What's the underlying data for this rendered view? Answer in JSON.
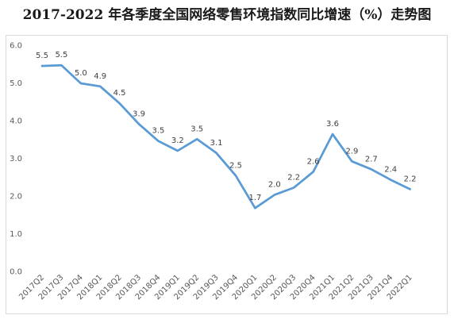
{
  "chart_data": {
    "type": "line",
    "title": "2017-2022 年各季度全国网络零售环境指数同比增速（%）走势图",
    "xlabel": "",
    "ylabel": "",
    "ylim": [
      0,
      6
    ],
    "yticks": [
      "0.0",
      "1.0",
      "2.0",
      "3.0",
      "4.0",
      "5.0",
      "6.0"
    ],
    "grid": false,
    "legend": "none",
    "line_color": "#5b9bd5",
    "categories": [
      "2017Q2",
      "2017Q3",
      "2017Q4",
      "2018Q1",
      "2018Q2",
      "2018Q3",
      "2018Q4",
      "2019Q1",
      "2019Q2",
      "2019Q3",
      "2019Q4",
      "2020Q1",
      "2020Q2",
      "2020Q3",
      "2020Q4",
      "2021Q1",
      "2021Q2",
      "2021Q3",
      "2021Q4",
      "2022Q1"
    ],
    "values": [
      5.45,
      5.47,
      4.99,
      4.91,
      4.46,
      3.91,
      3.46,
      3.2,
      3.51,
      3.14,
      2.54,
      1.68,
      2.03,
      2.22,
      2.64,
      3.64,
      2.92,
      2.71,
      2.43,
      2.18
    ],
    "data_labels": [
      "5.5",
      "5.5",
      "5.0",
      "4.9",
      "4.5",
      "3.9",
      "3.5",
      "3.2",
      "3.5",
      "3.1",
      "2.5",
      "1.7",
      "2.0",
      "2.2",
      "2.6",
      "3.6",
      "2.9",
      "2.7",
      "2.4",
      "2.2"
    ]
  }
}
